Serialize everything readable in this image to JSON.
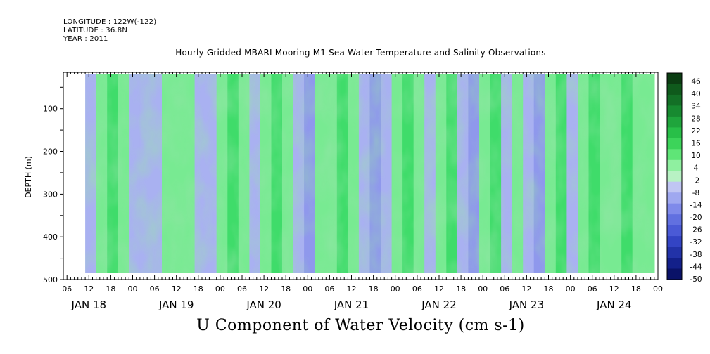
{
  "header": {
    "longitude": "LONGITUDE : 122W(-122)",
    "latitude": "LATITUDE : 36.8N",
    "year": "YEAR : 2011"
  },
  "colors": {
    "negative": "#9fa8f0",
    "positive": "#52e47a",
    "background": "#ffffff"
  },
  "chart_data": {
    "type": "heatmap",
    "title": "Hourly Gridded MBARI Mooring M1 Sea Water Temperature and Salinity Observations",
    "xlabel": "U Component of Water Velocity (cm s-1)",
    "ylabel": "DEPTH (m)",
    "ylim": [
      500,
      15
    ],
    "y_ticks": [
      100,
      200,
      300,
      400,
      500
    ],
    "y_data_range": [
      20,
      485
    ],
    "x_hour_ticks": [
      "06",
      "12",
      "18",
      "00",
      "06",
      "12",
      "18",
      "00",
      "06",
      "12",
      "18",
      "00",
      "06",
      "12",
      "18",
      "00",
      "06",
      "12",
      "18",
      "00",
      "06",
      "12",
      "18",
      "00",
      "06",
      "12",
      "18",
      "00"
    ],
    "x_day_labels": [
      "JAN 18",
      "JAN 19",
      "JAN 20",
      "JAN 21",
      "JAN 22",
      "JAN 23",
      "JAN 24"
    ],
    "x_start_hour": 5,
    "x_end_hour": 168,
    "x_data_start_hour": 11,
    "colorbar": {
      "labels": [
        46,
        40,
        34,
        28,
        22,
        16,
        10,
        4,
        -2,
        -8,
        -14,
        -20,
        -26,
        -32,
        -38,
        -44,
        -50
      ],
      "colors": [
        "#0b3d12",
        "#0f5a1c",
        "#137026",
        "#178a30",
        "#1fa53c",
        "#28bf48",
        "#3cd45a",
        "#5fe577",
        "#8ff0a0",
        "#b8f2c4",
        "#c0c6f3",
        "#9fa8f0",
        "#7f8aea",
        "#6170e0",
        "#4a5ad6",
        "#3344c4",
        "#2232a8",
        "#13208a",
        "#0a1268"
      ]
    },
    "columns": [
      {
        "hour": 11,
        "value": -4
      },
      {
        "hour": 14,
        "value": 8
      },
      {
        "hour": 17,
        "value": 12
      },
      {
        "hour": 20,
        "value": 4
      },
      {
        "hour": 23,
        "value": -6
      },
      {
        "hour": 26,
        "value": -10
      },
      {
        "hour": 29,
        "value": -4
      },
      {
        "hour": 32,
        "value": 6
      },
      {
        "hour": 35,
        "value": 10
      },
      {
        "hour": 38,
        "value": 2
      },
      {
        "hour": 41,
        "value": -8
      },
      {
        "hour": 44,
        "value": -2
      },
      {
        "hour": 47,
        "value": 4
      },
      {
        "hour": 50,
        "value": 12
      },
      {
        "hour": 53,
        "value": 2
      },
      {
        "hour": 56,
        "value": -6
      },
      {
        "hour": 59,
        "value": 4
      },
      {
        "hour": 62,
        "value": 14
      },
      {
        "hour": 65,
        "value": 8
      },
      {
        "hour": 68,
        "value": -8
      },
      {
        "hour": 71,
        "value": -14
      },
      {
        "hour": 74,
        "value": 2
      },
      {
        "hour": 77,
        "value": 10
      },
      {
        "hour": 80,
        "value": 16
      },
      {
        "hour": 83,
        "value": 6
      },
      {
        "hour": 86,
        "value": -6
      },
      {
        "hour": 89,
        "value": -16
      },
      {
        "hour": 92,
        "value": -10
      },
      {
        "hour": 95,
        "value": 4
      },
      {
        "hour": 98,
        "value": 12
      },
      {
        "hour": 101,
        "value": 6
      },
      {
        "hour": 104,
        "value": -4
      },
      {
        "hour": 107,
        "value": 10
      },
      {
        "hour": 110,
        "value": 14
      },
      {
        "hour": 113,
        "value": -10
      },
      {
        "hour": 116,
        "value": -16
      },
      {
        "hour": 119,
        "value": 4
      },
      {
        "hour": 122,
        "value": 12
      },
      {
        "hour": 125,
        "value": -2
      },
      {
        "hour": 128,
        "value": 8
      },
      {
        "hour": 131,
        "value": -8
      },
      {
        "hour": 134,
        "value": -14
      },
      {
        "hour": 137,
        "value": 4
      },
      {
        "hour": 140,
        "value": 12
      },
      {
        "hour": 143,
        "value": -6
      },
      {
        "hour": 146,
        "value": 8
      },
      {
        "hour": 149,
        "value": 14
      },
      {
        "hour": 152,
        "value": 4
      },
      {
        "hour": 155,
        "value": 10
      },
      {
        "hour": 158,
        "value": 14
      },
      {
        "hour": 161,
        "value": 6
      },
      {
        "hour": 164,
        "value": 10
      }
    ]
  }
}
